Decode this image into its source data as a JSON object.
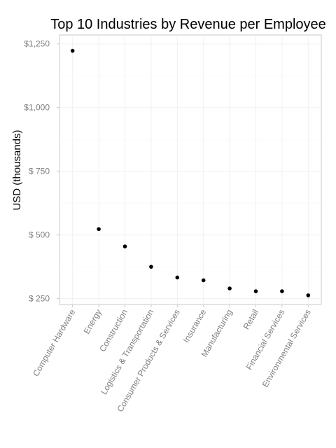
{
  "chart_data": {
    "type": "scatter",
    "title": "Top 10 Industries by Revenue per Employee",
    "xlabel": "",
    "ylabel": "USD (thousands)",
    "categories": [
      "Computer Hardware",
      "Energy",
      "Construction",
      "Logistics & Transportation",
      "Consumer Products & Services",
      "Insurance",
      "Manufacturing",
      "Retail",
      "Financial Services",
      "Environmental Services"
    ],
    "values": [
      1223,
      523,
      455,
      375,
      333,
      322,
      290,
      279,
      279,
      263
    ],
    "ylim": [
      227,
      1285
    ],
    "yticks": [
      250,
      500,
      750,
      1000,
      1250
    ],
    "ytick_labels": [
      "$  250",
      "$  500",
      "$  750",
      "$1,000",
      "$1,250"
    ],
    "grid": true,
    "point_color": "#000000"
  }
}
